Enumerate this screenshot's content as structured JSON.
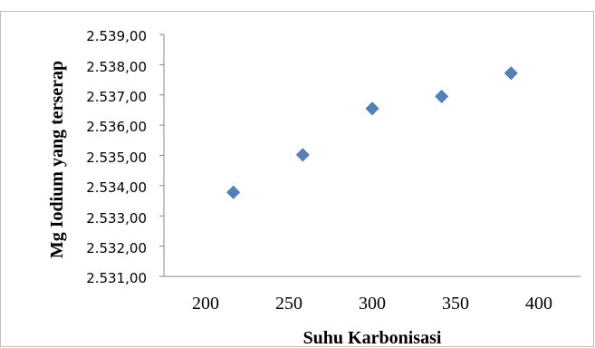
{
  "chart_data": {
    "type": "scatter",
    "xlabel": "Suhu Karbonisasi",
    "ylabel": "Mg Iodium yang terserap",
    "x_ticks": [
      "200",
      "250",
      "300",
      "350",
      "400"
    ],
    "y_ticks": [
      "2.531,00",
      "2.532,00",
      "2.533,00",
      "2.534,00",
      "2.535,00",
      "2.536,00",
      "2.537,00",
      "2.538,00",
      "2.539,00"
    ],
    "xlim": [
      150,
      450
    ],
    "ylim": [
      2531,
      2539
    ],
    "grid": false,
    "legend": "none",
    "marker": "diamond",
    "marker_color": "#4F81BD",
    "points": [
      {
        "x": 200,
        "y": 2533.78
      },
      {
        "x": 250,
        "y": 2535.02
      },
      {
        "x": 300,
        "y": 2536.55
      },
      {
        "x": 350,
        "y": 2536.95
      },
      {
        "x": 400,
        "y": 2537.72
      }
    ]
  }
}
